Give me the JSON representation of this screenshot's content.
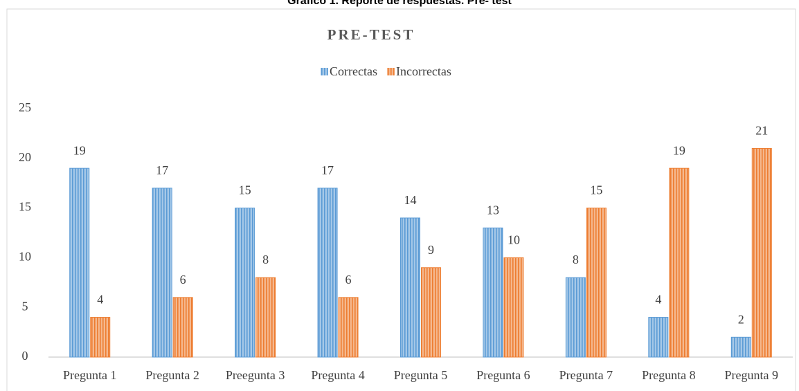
{
  "chart_data": {
    "type": "bar",
    "caption": "Gráfico 1. Reporte de respuestas. Pre- test",
    "title": "PRE-TEST",
    "categories": [
      "Pregunta 1",
      "Pregunta 2",
      "Preegunta 3",
      "Pregunta 4",
      "Pregunta 5",
      "Pregunta 6",
      "Pregunta 7",
      "Pregunta 8",
      "Pregunta 9"
    ],
    "series": [
      {
        "name": "Correctas",
        "color": "#5b9bd5",
        "values": [
          19,
          17,
          15,
          17,
          14,
          13,
          8,
          4,
          2
        ]
      },
      {
        "name": "Incorrectas",
        "color": "#ed7d31",
        "values": [
          4,
          6,
          8,
          6,
          9,
          10,
          15,
          19,
          21
        ]
      }
    ],
    "ylim": [
      0,
      25
    ],
    "yticks": [
      0,
      5,
      10,
      15,
      20,
      25
    ],
    "grid": false,
    "legend": "top"
  }
}
